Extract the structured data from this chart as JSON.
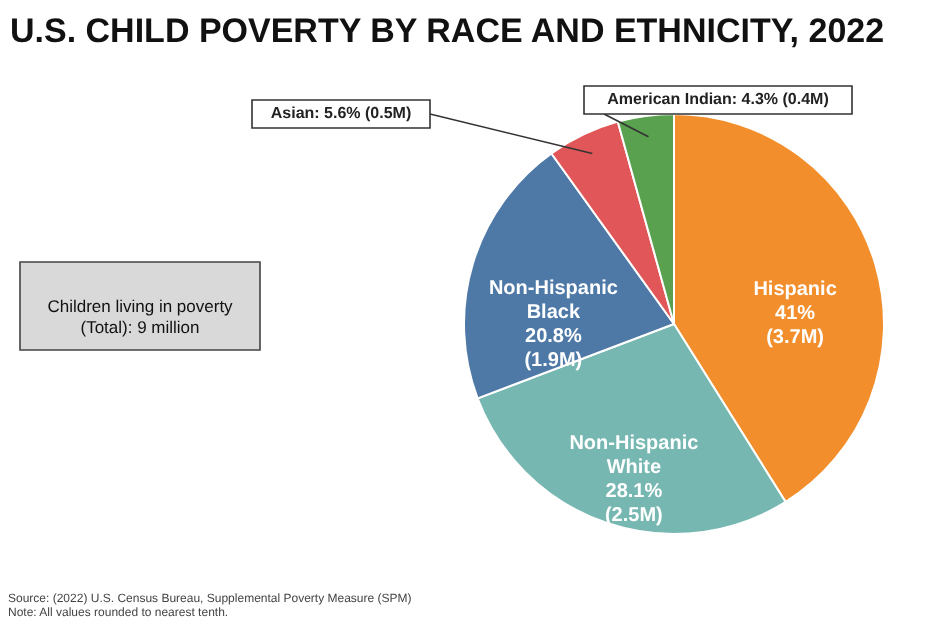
{
  "chart_data": {
    "type": "pie",
    "title": "U.S. CHILD POVERTY BY RACE AND ETHNICITY, 2022",
    "categories": [
      "Hispanic",
      "Non-Hispanic\nWhite",
      "Non-Hispanic\nBlack",
      "Asian",
      "American Indian"
    ],
    "values": [
      41,
      28.1,
      20.8,
      5.6,
      4.3
    ],
    "value_labels": [
      "41%\n(3.7M)",
      "28.1%\n(2.5M)",
      "20.8%\n(1.9M)",
      "5.6% (0.5M)",
      "4.3% (0.4M)"
    ],
    "colors": [
      "#f28e2b",
      "#76b7b2",
      "#4e79a7",
      "#e15759",
      "#59a14f"
    ],
    "annotations": [
      "Children living in poverty\n(Total): 9 million",
      "Source: (2022) U.S. Census Bureau, Supplemental Poverty Measure (SPM)",
      "Note: All values rounded to nearest tenth."
    ]
  }
}
